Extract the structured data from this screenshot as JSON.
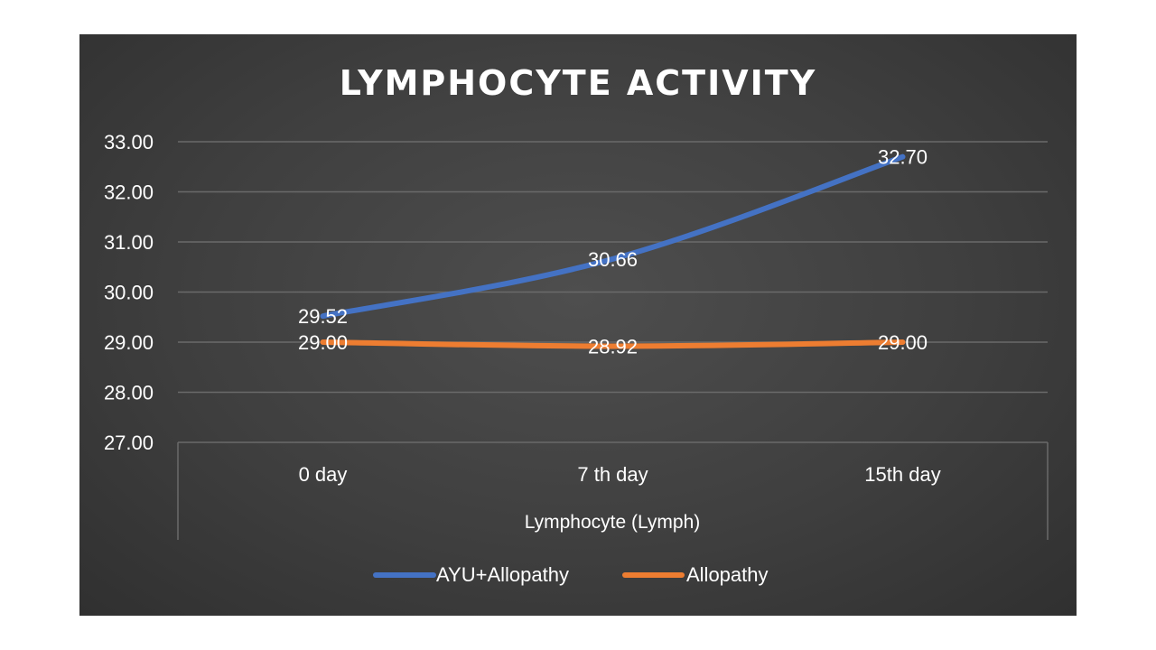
{
  "chart_data": {
    "type": "line",
    "title": "LYMPHOCYTE ACTIVITY",
    "xlabel": "Lymphocyte (Lymph)",
    "ylabel": "",
    "categories": [
      "0 day",
      "7 th day",
      "15th day"
    ],
    "ylim": [
      27,
      33
    ],
    "yticks": [
      "33.00",
      "32.00",
      "31.00",
      "30.00",
      "29.00",
      "28.00",
      "27.00"
    ],
    "grid": true,
    "legend_position": "bottom",
    "series": [
      {
        "name": "AYU+Allopathy",
        "color": "#4472c4",
        "values": [
          29.52,
          30.66,
          32.7
        ],
        "labels": [
          "29.52",
          "30.66",
          "32.70"
        ]
      },
      {
        "name": "Allopathy",
        "color": "#ed7d31",
        "values": [
          29.0,
          28.92,
          29.0
        ],
        "labels": [
          "29.00",
          "28.92",
          "29.00"
        ]
      }
    ]
  }
}
